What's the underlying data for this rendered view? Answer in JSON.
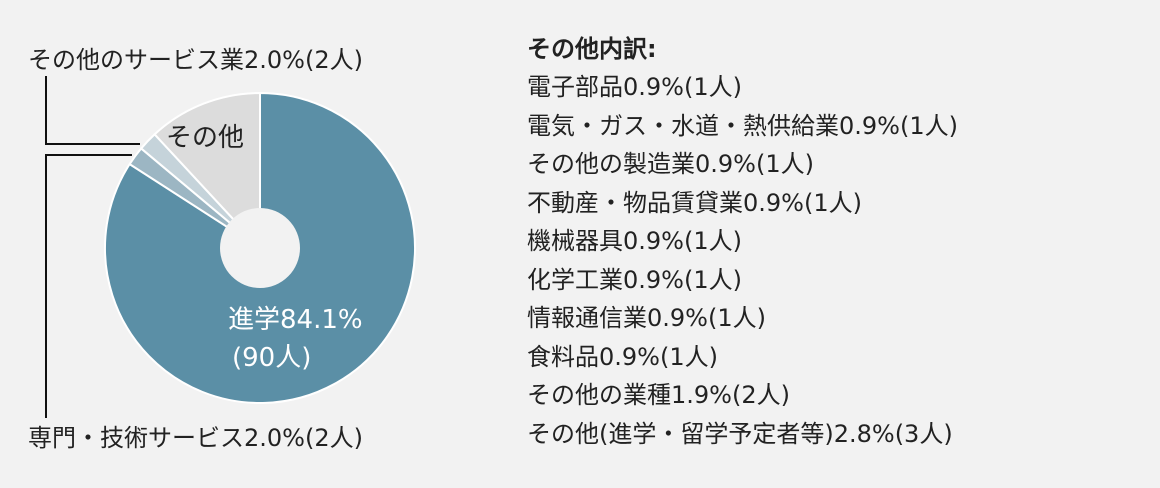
{
  "chart_data": {
    "type": "pie",
    "style": "donut",
    "slices": [
      {
        "label": "進学",
        "percent": 84.1,
        "count": "90人",
        "color": "#5b8fa6"
      },
      {
        "label": "専門・技術サービス",
        "percent": 2.0,
        "count": "2人",
        "color": "#9cb6c3"
      },
      {
        "label": "その他のサービス業",
        "percent": 2.0,
        "count": "2人",
        "color": "#c5d3da"
      },
      {
        "label": "その他",
        "percent": 11.9,
        "color": "#dcdcdc"
      }
    ],
    "labels": {
      "main_line1": "進学84.1%",
      "main_line2": "(90人)",
      "other_slice": "その他",
      "callout_top": "その他のサービス業2.0%(2人)",
      "callout_bottom": "専門・技術サービス2.0%(2人)"
    }
  },
  "breakdown": {
    "title": "その他内訳:",
    "items": [
      "電子部品0.9%(1人)",
      "電気・ガス・水道・熱供給業0.9%(1人)",
      "その他の製造業0.9%(1人)",
      "不動産・物品賃貸業0.9%(1人)",
      "機械器具0.9%(1人)",
      "化学工業0.9%(1人)",
      "情報通信業0.9%(1人)",
      "食料品0.9%(1人)",
      "その他の業種1.9%(2人)",
      "その他(進学・留学予定者等)2.8%(3人)"
    ]
  }
}
